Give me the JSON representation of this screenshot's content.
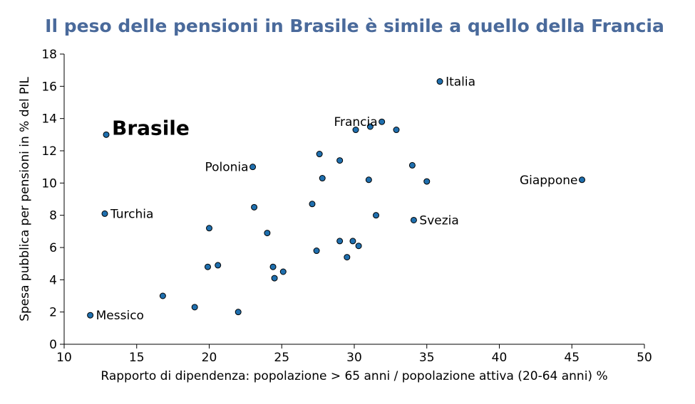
{
  "chart_data": {
    "type": "scatter",
    "title": "Il peso delle pensioni in Brasile è simile a quello della Francia",
    "xlabel": "Rapporto di dipendenza: popolazione > 65 anni / popolazione attiva (20-64 anni) %",
    "ylabel": "Spesa pubblica per pensioni in % del PIL",
    "xlim": [
      10,
      50
    ],
    "ylim": [
      0,
      18
    ],
    "xticks": [
      10,
      15,
      20,
      25,
      30,
      35,
      40,
      45,
      50
    ],
    "yticks": [
      0,
      2,
      4,
      6,
      8,
      10,
      12,
      14,
      16,
      18
    ],
    "marker_color": "#1f6fae",
    "highlight_color": "#00a651",
    "points": [
      {
        "x": 11.8,
        "y": 1.8,
        "label": "Messico",
        "side": "right"
      },
      {
        "x": 12.8,
        "y": 8.1,
        "label": "Turchia",
        "side": "right"
      },
      {
        "x": 12.9,
        "y": 13.0,
        "label": "Brasile",
        "side": "right",
        "highlight": true
      },
      {
        "x": 16.8,
        "y": 3.0
      },
      {
        "x": 19.0,
        "y": 2.3
      },
      {
        "x": 19.9,
        "y": 4.8
      },
      {
        "x": 20.0,
        "y": 7.2
      },
      {
        "x": 20.6,
        "y": 4.9
      },
      {
        "x": 22.0,
        "y": 2.0
      },
      {
        "x": 23.0,
        "y": 11.0,
        "label": "Polonia",
        "side": "left"
      },
      {
        "x": 23.1,
        "y": 8.5
      },
      {
        "x": 24.0,
        "y": 6.9
      },
      {
        "x": 24.4,
        "y": 4.8
      },
      {
        "x": 24.5,
        "y": 4.1
      },
      {
        "x": 25.1,
        "y": 4.5
      },
      {
        "x": 27.1,
        "y": 8.7
      },
      {
        "x": 27.4,
        "y": 5.8
      },
      {
        "x": 27.6,
        "y": 11.8
      },
      {
        "x": 27.8,
        "y": 10.3
      },
      {
        "x": 29.0,
        "y": 11.4
      },
      {
        "x": 29.0,
        "y": 6.4
      },
      {
        "x": 29.5,
        "y": 5.4
      },
      {
        "x": 29.9,
        "y": 6.4
      },
      {
        "x": 30.1,
        "y": 13.3
      },
      {
        "x": 30.3,
        "y": 6.1
      },
      {
        "x": 31.0,
        "y": 10.2
      },
      {
        "x": 31.1,
        "y": 13.5
      },
      {
        "x": 31.5,
        "y": 8.0
      },
      {
        "x": 31.9,
        "y": 13.8,
        "label": "Francia",
        "side": "left"
      },
      {
        "x": 32.9,
        "y": 13.3
      },
      {
        "x": 34.0,
        "y": 11.1
      },
      {
        "x": 34.1,
        "y": 7.7,
        "label": "Svezia",
        "side": "right"
      },
      {
        "x": 35.0,
        "y": 10.1
      },
      {
        "x": 35.9,
        "y": 16.3,
        "label": "Italia",
        "side": "right"
      },
      {
        "x": 45.7,
        "y": 10.2,
        "label": "Giappone",
        "side": "left"
      }
    ]
  }
}
